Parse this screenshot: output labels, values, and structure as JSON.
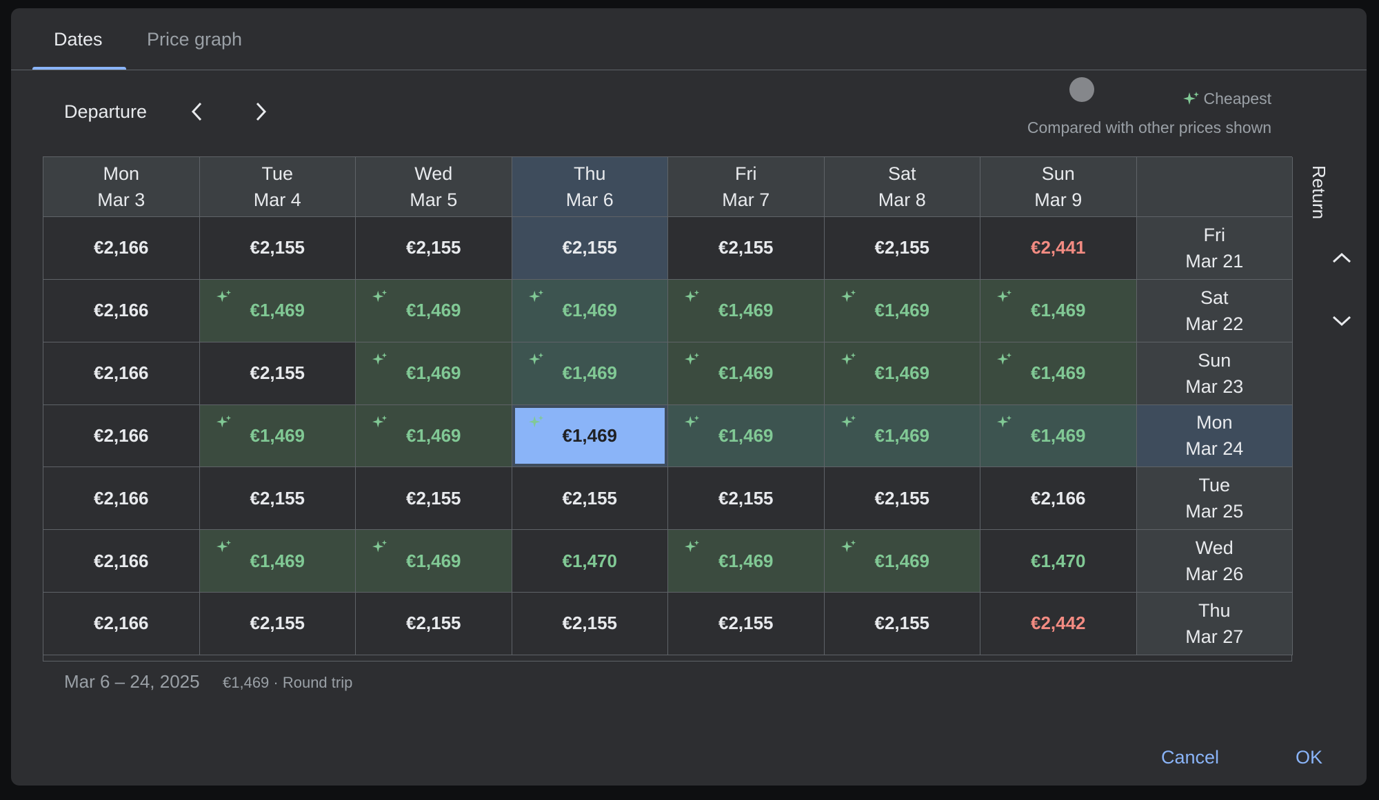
{
  "tabs": [
    {
      "label": "Dates"
    },
    {
      "label": "Price graph"
    }
  ],
  "departure_label": "Departure",
  "legend": {
    "cheapest": "Cheapest",
    "subtitle": "Compared with other prices shown"
  },
  "return_label": "Return",
  "columns": [
    {
      "day": "Mon",
      "date": "Mar 3"
    },
    {
      "day": "Tue",
      "date": "Mar 4"
    },
    {
      "day": "Wed",
      "date": "Mar 5"
    },
    {
      "day": "Thu",
      "date": "Mar 6"
    },
    {
      "day": "Fri",
      "date": "Mar 7"
    },
    {
      "day": "Sat",
      "date": "Mar 8"
    },
    {
      "day": "Sun",
      "date": "Mar 9"
    }
  ],
  "rows": [
    {
      "day": "Fri",
      "date": "Mar 21",
      "prices": [
        "€2,166",
        "€2,155",
        "€2,155",
        "€2,155",
        "€2,155",
        "€2,155",
        "€2,441"
      ]
    },
    {
      "day": "Sat",
      "date": "Mar 22",
      "prices": [
        "€2,166",
        "€1,469",
        "€1,469",
        "€1,469",
        "€1,469",
        "€1,469",
        "€1,469"
      ]
    },
    {
      "day": "Sun",
      "date": "Mar 23",
      "prices": [
        "€2,166",
        "€2,155",
        "€1,469",
        "€1,469",
        "€1,469",
        "€1,469",
        "€1,469"
      ]
    },
    {
      "day": "Mon",
      "date": "Mar 24",
      "prices": [
        "€2,166",
        "€1,469",
        "€1,469",
        "€1,469",
        "€1,469",
        "€1,469",
        "€1,469"
      ]
    },
    {
      "day": "Tue",
      "date": "Mar 25",
      "prices": [
        "€2,166",
        "€2,155",
        "€2,155",
        "€2,155",
        "€2,155",
        "€2,155",
        "€2,166"
      ]
    },
    {
      "day": "Wed",
      "date": "Mar 26",
      "prices": [
        "€2,166",
        "€1,469",
        "€1,469",
        "€1,470",
        "€1,469",
        "€1,469",
        "€1,470"
      ]
    },
    {
      "day": "Thu",
      "date": "Mar 27",
      "prices": [
        "€2,166",
        "€2,155",
        "€2,155",
        "€2,155",
        "€2,155",
        "€2,155",
        "€2,442"
      ]
    }
  ],
  "footer": {
    "dates": "Mar 6 – 24, 2025",
    "price": "€1,469 · Round trip"
  },
  "buttons": {
    "cancel": "Cancel",
    "ok": "OK"
  },
  "colors": {
    "cheap_bg": "#3b4b3f",
    "cheap_text": "#81c995",
    "high_text": "#f28b82",
    "selected": "#8ab4f8",
    "highlight": "#3e4c5c"
  }
}
